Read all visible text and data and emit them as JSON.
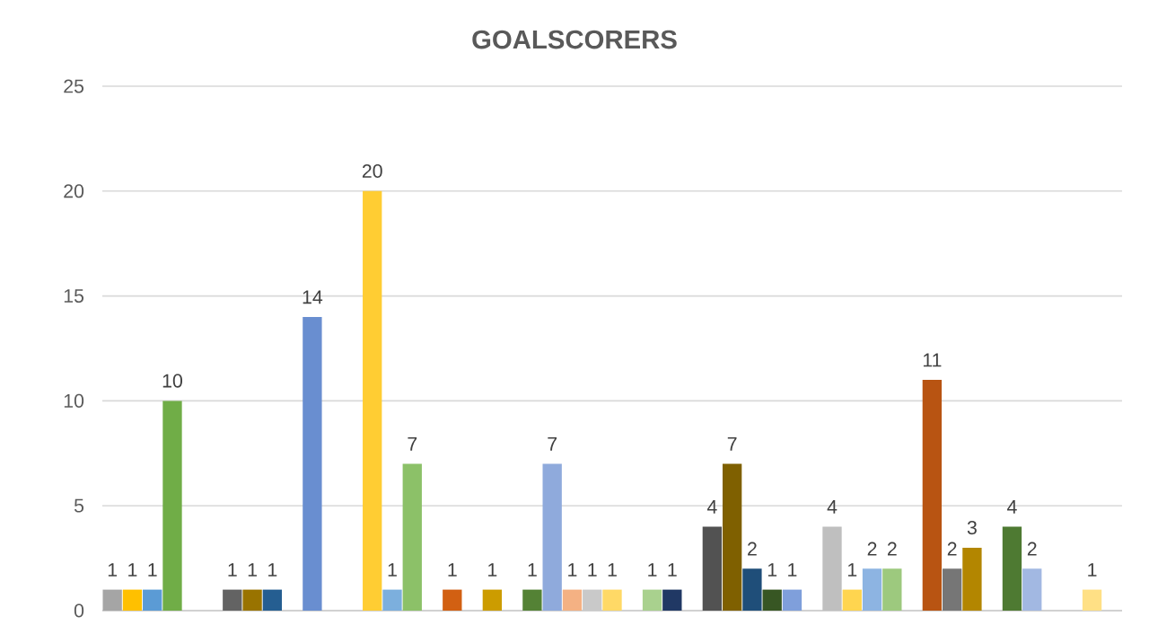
{
  "chart_data": {
    "type": "bar",
    "title": "GOALSCORERS",
    "categories": [
      null,
      null,
      null,
      null,
      null,
      null,
      null,
      null,
      null,
      null,
      null,
      null,
      null,
      null,
      null,
      null,
      null,
      null,
      null,
      null,
      null,
      null,
      null,
      null,
      null,
      null,
      null,
      null,
      null,
      null,
      null,
      null,
      null,
      null,
      null,
      null,
      null,
      null,
      null,
      null,
      null,
      null,
      null,
      null,
      null,
      null,
      null,
      null,
      null,
      null,
      null
    ],
    "values": [
      1,
      1,
      1,
      10,
      null,
      null,
      1,
      1,
      1,
      null,
      14,
      null,
      null,
      20,
      1,
      7,
      null,
      1,
      null,
      1,
      null,
      1,
      7,
      1,
      1,
      1,
      null,
      1,
      1,
      null,
      4,
      7,
      2,
      1,
      1,
      null,
      4,
      1,
      2,
      2,
      null,
      11,
      2,
      3,
      null,
      4,
      2,
      null,
      null,
      1,
      null
    ],
    "colors": [
      "#a5a5a5",
      "#ffc000",
      "#5b9bd5",
      "#70ad47",
      null,
      null,
      "#636363",
      "#997300",
      "#255e91",
      null,
      "#698ed0",
      null,
      null,
      "#ffcd33",
      "#7cafdd",
      "#8cc168",
      null,
      "#d26012",
      null,
      "#cc9c00",
      null,
      "#548235",
      "#8faadc",
      "#f4b183",
      "#c9c9c9",
      "#ffd966",
      null,
      "#a9d18e",
      "#203864",
      null,
      "#525252",
      "#7f6000",
      "#1f4e79",
      "#375623",
      "#7f9fdb",
      null,
      "#bfbfbf",
      "#ffd54f",
      "#8db4e2",
      "#9dc97e",
      null,
      "#b85412",
      "#767676",
      "#b38600",
      null,
      "#4e7a32",
      "#a2b8e2",
      null,
      null,
      "#ffe085",
      null
    ],
    "ylim": [
      0,
      25
    ],
    "yticks": [
      0,
      5,
      10,
      15,
      20,
      25
    ],
    "grid": "y",
    "data_labels": true,
    "tick_labels": "y"
  }
}
